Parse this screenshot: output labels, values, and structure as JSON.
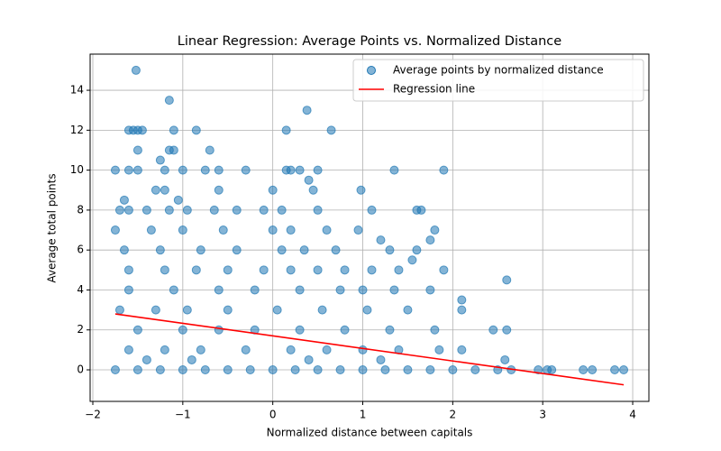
{
  "chart_data": {
    "type": "scatter",
    "title": "Linear Regression: Average Points vs. Normalized Distance",
    "x_label": "Normalized distance between capitals",
    "y_label": "Average total points",
    "xlim": [
      -2.03,
      4.18
    ],
    "ylim": [
      -1.58,
      15.81
    ],
    "xticks": [
      {
        "value": -2,
        "label": "−2"
      },
      {
        "value": -1,
        "label": "−1"
      },
      0,
      1,
      2,
      3,
      4
    ],
    "yticks": [
      0,
      2,
      4,
      6,
      8,
      10,
      12,
      14
    ],
    "grid": true,
    "legend": "upper right",
    "series": [
      {
        "name": "Average points by normalized distance",
        "color": "#1f77b4",
        "type": "scatter",
        "x": [
          -1.52,
          -1.15,
          0.38,
          -1.6,
          -1.55,
          -1.5,
          -1.45,
          -1.1,
          -0.85,
          0.15,
          0.65,
          -1.5,
          -1.15,
          -1.1,
          -0.7,
          -1.25,
          -1.75,
          -1.6,
          -1.5,
          -1.2,
          -1.0,
          -0.75,
          -0.6,
          -0.3,
          0.15,
          0.2,
          0.3,
          0.5,
          1.35,
          1.9,
          0.4,
          0.0,
          -1.3,
          -1.2,
          -0.6,
          0.45,
          0.98,
          -1.65,
          -1.05,
          -1.7,
          -1.6,
          -1.4,
          -1.15,
          -0.95,
          -0.65,
          -0.4,
          -0.1,
          0.1,
          0.5,
          1.1,
          1.6,
          1.65,
          -1.75,
          -1.35,
          -1.0,
          -0.55,
          0.0,
          0.2,
          0.6,
          0.95,
          1.8,
          1.2,
          -1.65,
          -1.25,
          -0.8,
          -0.4,
          0.1,
          0.35,
          0.7,
          1.3,
          1.6,
          1.75,
          -1.6,
          -1.2,
          -0.85,
          -0.5,
          -0.1,
          0.2,
          0.5,
          0.8,
          1.1,
          1.4,
          1.9,
          1.55,
          -1.6,
          -1.1,
          -0.6,
          -0.2,
          0.3,
          0.75,
          1.0,
          1.35,
          1.75,
          2.6,
          -1.7,
          -1.3,
          -0.95,
          -0.5,
          0.05,
          0.55,
          1.05,
          1.5,
          2.1,
          2.1,
          -1.5,
          -1.0,
          -0.6,
          -0.2,
          0.3,
          0.8,
          1.3,
          1.8,
          2.45,
          2.6,
          -1.6,
          -1.2,
          -0.8,
          -0.3,
          0.2,
          0.6,
          1.0,
          1.4,
          1.85,
          2.1,
          -1.4,
          -0.9,
          0.4,
          1.2,
          2.58,
          -1.75,
          -1.5,
          -1.25,
          -1.0,
          -0.75,
          -0.5,
          -0.25,
          0,
          0.25,
          0.5,
          0.75,
          1.0,
          1.25,
          1.5,
          1.75,
          2.0,
          2.25,
          2.5,
          2.65,
          2.95,
          3.05,
          3.1,
          3.45,
          3.55,
          3.8,
          3.9
        ],
        "values": [
          15,
          13.5,
          13,
          12,
          12,
          12,
          12,
          12,
          12,
          12,
          12,
          11,
          11,
          11,
          11,
          10.5,
          10,
          10,
          10,
          10,
          10,
          10,
          10,
          10,
          10,
          10,
          10,
          10,
          10,
          10,
          9.5,
          9,
          9,
          9,
          9,
          9,
          9,
          8.5,
          8.5,
          8,
          8,
          8,
          8,
          8,
          8,
          8,
          8,
          8,
          8,
          8,
          8,
          8,
          7,
          7,
          7,
          7,
          7,
          7,
          7,
          7,
          7,
          6.5,
          6,
          6,
          6,
          6,
          6,
          6,
          6,
          6,
          6,
          6.5,
          5,
          5,
          5,
          5,
          5,
          5,
          5,
          5,
          5,
          5,
          5,
          5.5,
          4,
          4,
          4,
          4,
          4,
          4,
          4,
          4,
          4,
          4.5,
          3,
          3,
          3,
          3,
          3,
          3,
          3,
          3,
          3,
          3.5,
          2,
          2,
          2,
          2,
          2,
          2,
          2,
          2,
          2,
          2,
          1,
          1,
          1,
          1,
          1,
          1,
          1,
          1,
          1,
          1,
          0.5,
          0.5,
          0.5,
          0.5,
          0.5,
          0,
          0,
          0,
          0,
          0,
          0,
          0,
          0,
          0,
          0,
          0,
          0,
          0,
          0,
          0,
          0,
          0,
          0,
          0,
          0,
          0,
          0,
          0,
          0,
          0,
          0
        ]
      },
      {
        "name": "Regression line",
        "color": "#ff0000",
        "type": "line",
        "x": [
          -1.75,
          3.9
        ],
        "values": [
          2.8,
          -0.75
        ]
      }
    ]
  }
}
